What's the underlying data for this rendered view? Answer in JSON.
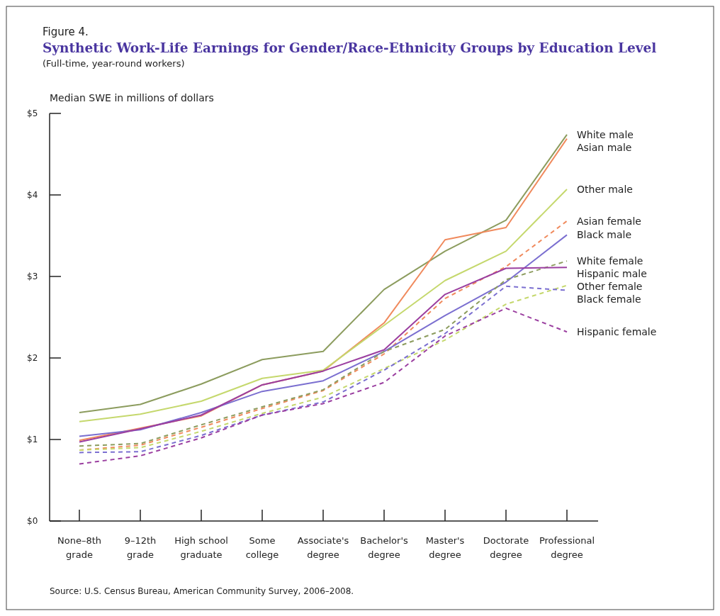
{
  "chart_data": {
    "type": "line",
    "title": "Synthetic Work-Life Earnings for Gender/Race-Ethnicity Groups by Education Level",
    "subtitle": "(Full-time, year-round workers)",
    "ylabel": "Median SWE in millions of dollars",
    "annotations": [
      "Figure 4.",
      "Source: U.S. Census Bureau, American Community Survey, 2006–2008."
    ],
    "categories": [
      "None–8th grade",
      "9–12th grade",
      "High school graduate",
      "Some college",
      "Associate's degree",
      "Bachelor's degree",
      "Master's degree",
      "Doctorate degree",
      "Professional degree"
    ],
    "ylim": [
      0,
      5
    ],
    "yticks": [
      {
        "value": 0,
        "label": "$0"
      },
      {
        "value": 1,
        "label": "$1"
      },
      {
        "value": 2,
        "label": "$2"
      },
      {
        "value": 3,
        "label": "$3"
      },
      {
        "value": 4,
        "label": "$4"
      },
      {
        "value": 5,
        "label": "$5"
      }
    ],
    "grid": false,
    "series": [
      {
        "name": "White male",
        "color": "#8c9c5e",
        "line_style": "solid",
        "values": [
          1.33,
          1.43,
          1.68,
          1.98,
          2.08,
          2.84,
          3.31,
          3.69,
          4.74
        ]
      },
      {
        "name": "Asian male",
        "color": "#f08a5d",
        "line_style": "solid",
        "values": [
          0.99,
          1.14,
          1.29,
          1.67,
          1.84,
          2.43,
          3.45,
          3.6,
          4.69
        ]
      },
      {
        "name": "Other male",
        "color": "#c5d86d",
        "line_style": "solid",
        "values": [
          1.22,
          1.31,
          1.47,
          1.75,
          1.85,
          2.4,
          2.95,
          3.31,
          4.07
        ]
      },
      {
        "name": "Asian female",
        "color": "#f08a5d",
        "line_style": "dashed",
        "values": [
          0.87,
          0.93,
          1.15,
          1.38,
          1.6,
          2.05,
          2.73,
          3.12,
          3.68
        ]
      },
      {
        "name": "Black male",
        "color": "#7b6fd0",
        "line_style": "solid",
        "values": [
          1.04,
          1.12,
          1.33,
          1.59,
          1.72,
          2.08,
          2.52,
          2.93,
          3.51
        ]
      },
      {
        "name": "White female",
        "color": "#8c9c5e",
        "line_style": "dashed",
        "values": [
          0.92,
          0.95,
          1.18,
          1.4,
          1.61,
          2.08,
          2.35,
          2.96,
          3.19
        ]
      },
      {
        "name": "Hispanic male",
        "color": "#9b3fa0",
        "line_style": "solid",
        "values": [
          0.97,
          1.13,
          1.3,
          1.67,
          1.84,
          2.1,
          2.78,
          3.1,
          3.11
        ]
      },
      {
        "name": "Other female",
        "color": "#c5d86d",
        "line_style": "dashed",
        "values": [
          0.87,
          0.9,
          1.1,
          1.32,
          1.52,
          1.87,
          2.22,
          2.66,
          2.89
        ]
      },
      {
        "name": "Black female",
        "color": "#7b6fd0",
        "line_style": "dashed",
        "values": [
          0.84,
          0.85,
          1.05,
          1.3,
          1.46,
          1.85,
          2.3,
          2.88,
          2.83
        ]
      },
      {
        "name": "Hispanic female",
        "color": "#9b3fa0",
        "line_style": "dashed",
        "values": [
          0.7,
          0.8,
          1.02,
          1.3,
          1.44,
          1.7,
          2.27,
          2.61,
          2.32
        ]
      }
    ]
  }
}
